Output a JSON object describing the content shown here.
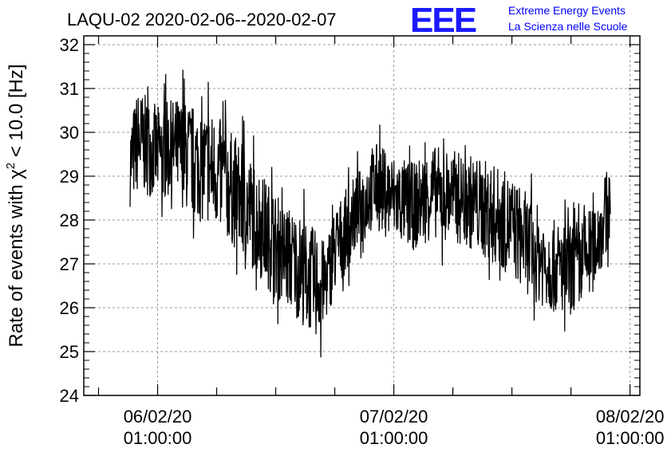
{
  "chart_data": {
    "type": "line",
    "title": "LAQU-02 2020-02-06--2020-02-07",
    "ylabel": "Rate of events with χ² < 10.0 [Hz]",
    "ylabel_parts": {
      "prefix": "Rate of events with χ",
      "sup": "2",
      "suffix": " < 10.0 [Hz]"
    },
    "xlabel": "",
    "ylim": [
      24,
      32.2
    ],
    "y_ticks": [
      "24",
      "25",
      "26",
      "27",
      "28",
      "29",
      "30",
      "31",
      "32"
    ],
    "x_ticks": [
      {
        "date": "06/02/20",
        "time": "01:00:00",
        "hours": 0
      },
      {
        "date": "07/02/20",
        "time": "01:00:00",
        "hours": 24
      },
      {
        "date": "08/02/20",
        "time": "01:00:00",
        "hours": 48
      }
    ],
    "xlim_hours": [
      -7.5,
      49
    ],
    "grid": true,
    "series": [
      {
        "color": "#000000",
        "envelope": [
          {
            "t": -2.8,
            "low": 28.3,
            "high": 30.3
          },
          {
            "t": -2.0,
            "low": 28.6,
            "high": 31.0
          },
          {
            "t": 0,
            "low": 28.5,
            "high": 30.6
          },
          {
            "t": 2,
            "low": 28.4,
            "high": 30.8
          },
          {
            "t": 4,
            "low": 28.0,
            "high": 30.6
          },
          {
            "t": 6,
            "low": 27.8,
            "high": 30.4
          },
          {
            "t": 8,
            "low": 27.3,
            "high": 29.9
          },
          {
            "t": 10,
            "low": 26.8,
            "high": 29.3
          },
          {
            "t": 12,
            "low": 26.2,
            "high": 28.6
          },
          {
            "t": 14,
            "low": 25.8,
            "high": 28.2
          },
          {
            "t": 16,
            "low": 25.3,
            "high": 27.8
          },
          {
            "t": 17,
            "low": 25.6,
            "high": 27.5
          },
          {
            "t": 18,
            "low": 26.3,
            "high": 28.3
          },
          {
            "t": 20,
            "low": 27.2,
            "high": 29.0
          },
          {
            "t": 21,
            "low": 27.5,
            "high": 29.3
          },
          {
            "t": 22,
            "low": 27.8,
            "high": 29.8
          },
          {
            "t": 24,
            "low": 27.5,
            "high": 29.5
          },
          {
            "t": 26,
            "low": 27.3,
            "high": 29.3
          },
          {
            "t": 28,
            "low": 27.6,
            "high": 29.7
          },
          {
            "t": 30,
            "low": 27.5,
            "high": 29.6
          },
          {
            "t": 32,
            "low": 27.3,
            "high": 29.5
          },
          {
            "t": 34,
            "low": 27.0,
            "high": 29.3
          },
          {
            "t": 36,
            "low": 26.7,
            "high": 29.0
          },
          {
            "t": 38,
            "low": 26.2,
            "high": 28.5
          },
          {
            "t": 40,
            "low": 25.9,
            "high": 28.0
          },
          {
            "t": 42,
            "low": 25.8,
            "high": 27.9
          },
          {
            "t": 44,
            "low": 26.2,
            "high": 28.3
          },
          {
            "t": 45,
            "low": 26.8,
            "high": 28.7
          },
          {
            "t": 46,
            "low": 27.5,
            "high": 29.4
          }
        ]
      }
    ]
  },
  "logo": {
    "mark": "EEE",
    "line1": "Extreme Energy Events",
    "line2": "La Scienza nelle Scuole"
  }
}
